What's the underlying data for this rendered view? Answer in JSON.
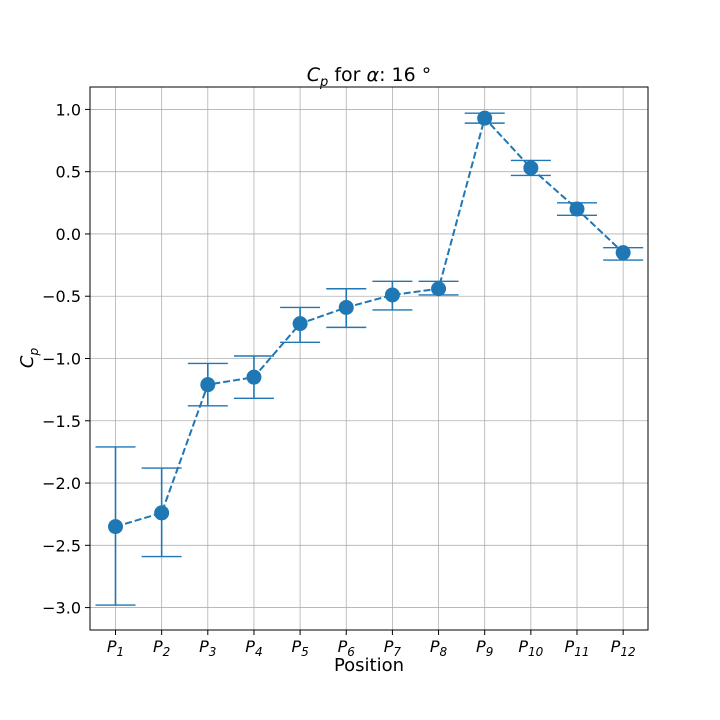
{
  "chart_data": {
    "type": "line",
    "title": {
      "prefix": "C",
      "prefix_sub": "p",
      "middle": " for ",
      "symbol": "α",
      "suffix": ": 16 °"
    },
    "xlabel": "Position",
    "ylabel": {
      "main": "C",
      "sub": "p"
    },
    "categories": [
      {
        "main": "P",
        "sub": "1"
      },
      {
        "main": "P",
        "sub": "2"
      },
      {
        "main": "P",
        "sub": "3"
      },
      {
        "main": "P",
        "sub": "4"
      },
      {
        "main": "P",
        "sub": "5"
      },
      {
        "main": "P",
        "sub": "6"
      },
      {
        "main": "P",
        "sub": "7"
      },
      {
        "main": "P",
        "sub": "8"
      },
      {
        "main": "P",
        "sub": "9"
      },
      {
        "main": "P",
        "sub": "10"
      },
      {
        "main": "P",
        "sub": "11"
      },
      {
        "main": "P",
        "sub": "12"
      }
    ],
    "series": [
      {
        "values": [
          -2.35,
          -2.24,
          -1.21,
          -1.15,
          -0.72,
          -0.59,
          -0.49,
          -0.44,
          0.93,
          0.53,
          0.2,
          -0.15
        ],
        "error_low": [
          -2.98,
          -2.59,
          -1.38,
          -1.32,
          -0.87,
          -0.75,
          -0.61,
          -0.49,
          0.89,
          0.47,
          0.15,
          -0.21
        ],
        "error_high": [
          -1.71,
          -1.88,
          -1.04,
          -0.98,
          -0.59,
          -0.44,
          -0.38,
          -0.38,
          0.97,
          0.59,
          0.25,
          -0.11
        ],
        "color": "#1f77b4",
        "line_style": "dashed",
        "marker": "circle"
      }
    ],
    "yticks": [
      -3.0,
      -2.5,
      -2.0,
      -1.5,
      -1.0,
      -0.5,
      0.0,
      0.5,
      1.0
    ],
    "ytick_labels": [
      "−3.0",
      "−2.5",
      "−2.0",
      "−1.5",
      "−1.0",
      "−0.5",
      "0.0",
      "0.5",
      "1.0"
    ],
    "ylim": [
      -3.18,
      1.18
    ],
    "grid": true
  }
}
